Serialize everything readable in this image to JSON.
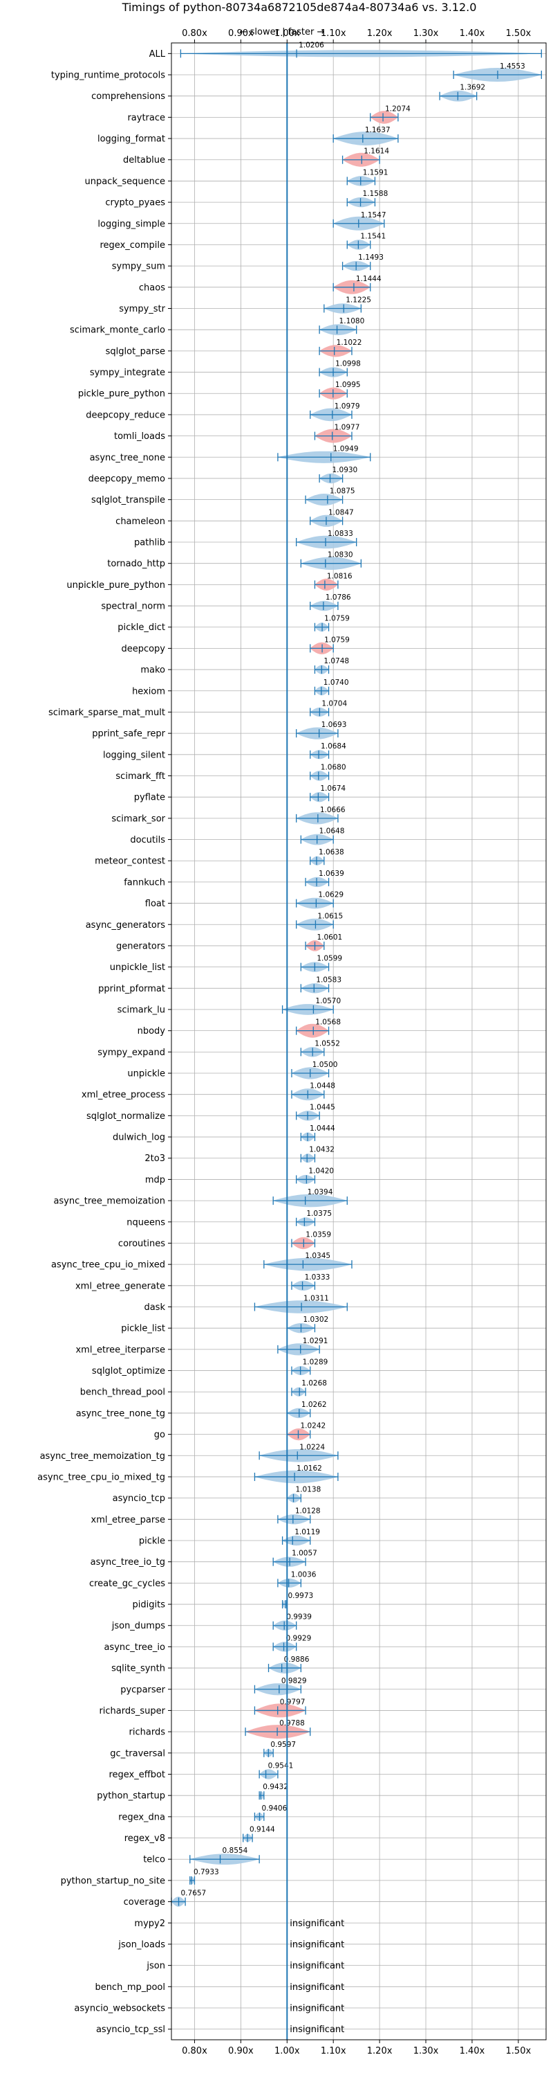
{
  "chart_data": {
    "type": "violin",
    "title": "Timings of python-80734a6872105de874a4-80734a6 vs. 3.12.0",
    "direction_label": "← slower | faster →",
    "xlim": [
      0.75,
      1.56
    ],
    "x_ticks": [
      0.8,
      0.9,
      1.0,
      1.1,
      1.2,
      1.3,
      1.4,
      1.5
    ],
    "x_tick_labels": [
      "0.80x",
      "0.90x",
      "1.00x",
      "1.10x",
      "1.20x",
      "1.30x",
      "1.40x",
      "1.50x"
    ],
    "reference_line": 1.0,
    "grid": true,
    "colors": {
      "normal": "#a9cbe6",
      "highlight": "#f4a6a6",
      "line": "#1f77b4"
    },
    "insignificant_label": "insignificant",
    "benchmarks": [
      {
        "name": "ALL",
        "value": 1.0206,
        "label": "1.0206",
        "min": 0.77,
        "max": 1.55,
        "width": 0.3,
        "highlight": false
      },
      {
        "name": "typing_runtime_protocols",
        "value": 1.4553,
        "label": "1.4553",
        "min": 1.36,
        "max": 1.55,
        "width": 1.0,
        "highlight": false
      },
      {
        "name": "comprehensions",
        "value": 1.3692,
        "label": "1.3692",
        "min": 1.33,
        "max": 1.41,
        "width": 0.7,
        "highlight": false
      },
      {
        "name": "raytrace",
        "value": 1.2074,
        "label": "1.2074",
        "min": 1.18,
        "max": 1.24,
        "width": 0.9,
        "highlight": true
      },
      {
        "name": "logging_format",
        "value": 1.1637,
        "label": "1.1637",
        "min": 1.1,
        "max": 1.24,
        "width": 1.0,
        "highlight": false
      },
      {
        "name": "deltablue",
        "value": 1.1614,
        "label": "1.1614",
        "min": 1.12,
        "max": 1.2,
        "width": 1.0,
        "highlight": true
      },
      {
        "name": "unpack_sequence",
        "value": 1.1591,
        "label": "1.1591",
        "min": 1.13,
        "max": 1.19,
        "width": 0.6,
        "highlight": false
      },
      {
        "name": "crypto_pyaes",
        "value": 1.1588,
        "label": "1.1588",
        "min": 1.13,
        "max": 1.19,
        "width": 0.6,
        "highlight": false
      },
      {
        "name": "logging_simple",
        "value": 1.1547,
        "label": "1.1547",
        "min": 1.1,
        "max": 1.21,
        "width": 1.0,
        "highlight": false
      },
      {
        "name": "regex_compile",
        "value": 1.1541,
        "label": "1.1541",
        "min": 1.13,
        "max": 1.18,
        "width": 0.6,
        "highlight": false
      },
      {
        "name": "sympy_sum",
        "value": 1.1493,
        "label": "1.1493",
        "min": 1.12,
        "max": 1.18,
        "width": 0.6,
        "highlight": false
      },
      {
        "name": "chaos",
        "value": 1.1444,
        "label": "1.1444",
        "min": 1.1,
        "max": 1.18,
        "width": 1.0,
        "highlight": true
      },
      {
        "name": "sympy_str",
        "value": 1.1225,
        "label": "1.1225",
        "min": 1.08,
        "max": 1.16,
        "width": 0.6,
        "highlight": false
      },
      {
        "name": "scimark_monte_carlo",
        "value": 1.108,
        "label": "1.1080",
        "min": 1.07,
        "max": 1.15,
        "width": 0.7,
        "highlight": false
      },
      {
        "name": "sqlglot_parse",
        "value": 1.1022,
        "label": "1.1022",
        "min": 1.07,
        "max": 1.14,
        "width": 0.8,
        "highlight": true
      },
      {
        "name": "sympy_integrate",
        "value": 1.0998,
        "label": "1.0998",
        "min": 1.07,
        "max": 1.13,
        "width": 0.6,
        "highlight": false
      },
      {
        "name": "pickle_pure_python",
        "value": 1.0995,
        "label": "1.0995",
        "min": 1.07,
        "max": 1.13,
        "width": 0.8,
        "highlight": true
      },
      {
        "name": "deepcopy_reduce",
        "value": 1.0979,
        "label": "1.0979",
        "min": 1.05,
        "max": 1.14,
        "width": 0.9,
        "highlight": false
      },
      {
        "name": "tomli_loads",
        "value": 1.0977,
        "label": "1.0977",
        "min": 1.06,
        "max": 1.14,
        "width": 1.0,
        "highlight": true
      },
      {
        "name": "async_tree_none",
        "value": 1.0949,
        "label": "1.0949",
        "min": 0.98,
        "max": 1.18,
        "width": 0.8,
        "highlight": false
      },
      {
        "name": "deepcopy_memo",
        "value": 1.093,
        "label": "1.0930",
        "min": 1.07,
        "max": 1.12,
        "width": 0.6,
        "highlight": false
      },
      {
        "name": "sqlglot_transpile",
        "value": 1.0875,
        "label": "1.0875",
        "min": 1.04,
        "max": 1.12,
        "width": 0.8,
        "highlight": false
      },
      {
        "name": "chameleon",
        "value": 1.0847,
        "label": "1.0847",
        "min": 1.05,
        "max": 1.12,
        "width": 0.8,
        "highlight": false
      },
      {
        "name": "pathlib",
        "value": 1.0833,
        "label": "1.0833",
        "min": 1.02,
        "max": 1.15,
        "width": 0.9,
        "highlight": false
      },
      {
        "name": "tornado_http",
        "value": 1.083,
        "label": "1.0830",
        "min": 1.03,
        "max": 1.16,
        "width": 0.9,
        "highlight": false
      },
      {
        "name": "unpickle_pure_python",
        "value": 1.0816,
        "label": "1.0816",
        "min": 1.06,
        "max": 1.11,
        "width": 0.8,
        "highlight": true
      },
      {
        "name": "spectral_norm",
        "value": 1.0786,
        "label": "1.0786",
        "min": 1.05,
        "max": 1.11,
        "width": 0.6,
        "highlight": false
      },
      {
        "name": "pickle_dict",
        "value": 1.0759,
        "label": "1.0759",
        "min": 1.06,
        "max": 1.09,
        "width": 0.5,
        "highlight": false
      },
      {
        "name": "deepcopy",
        "value": 1.0759,
        "label": "1.0759",
        "min": 1.05,
        "max": 1.1,
        "width": 0.8,
        "highlight": true
      },
      {
        "name": "mako",
        "value": 1.0748,
        "label": "1.0748",
        "min": 1.06,
        "max": 1.09,
        "width": 0.5,
        "highlight": false
      },
      {
        "name": "hexiom",
        "value": 1.074,
        "label": "1.0740",
        "min": 1.06,
        "max": 1.09,
        "width": 0.5,
        "highlight": false
      },
      {
        "name": "scimark_sparse_mat_mult",
        "value": 1.0704,
        "label": "1.0704",
        "min": 1.05,
        "max": 1.09,
        "width": 0.5,
        "highlight": false
      },
      {
        "name": "pprint_safe_repr",
        "value": 1.0693,
        "label": "1.0693",
        "min": 1.02,
        "max": 1.11,
        "width": 0.8,
        "highlight": false
      },
      {
        "name": "logging_silent",
        "value": 1.0684,
        "label": "1.0684",
        "min": 1.05,
        "max": 1.09,
        "width": 0.5,
        "highlight": false
      },
      {
        "name": "scimark_fft",
        "value": 1.068,
        "label": "1.0680",
        "min": 1.05,
        "max": 1.09,
        "width": 0.6,
        "highlight": false
      },
      {
        "name": "pyflate",
        "value": 1.0674,
        "label": "1.0674",
        "min": 1.05,
        "max": 1.09,
        "width": 0.6,
        "highlight": false
      },
      {
        "name": "scimark_sor",
        "value": 1.0666,
        "label": "1.0666",
        "min": 1.02,
        "max": 1.11,
        "width": 0.8,
        "highlight": false
      },
      {
        "name": "docutils",
        "value": 1.0648,
        "label": "1.0648",
        "min": 1.03,
        "max": 1.1,
        "width": 0.7,
        "highlight": false
      },
      {
        "name": "meteor_contest",
        "value": 1.0638,
        "label": "1.0638",
        "min": 1.05,
        "max": 1.08,
        "width": 0.5,
        "highlight": false
      },
      {
        "name": "fannkuch",
        "value": 1.0639,
        "label": "1.0639",
        "min": 1.04,
        "max": 1.09,
        "width": 0.6,
        "highlight": false
      },
      {
        "name": "float",
        "value": 1.0629,
        "label": "1.0629",
        "min": 1.02,
        "max": 1.1,
        "width": 0.7,
        "highlight": false
      },
      {
        "name": "async_generators",
        "value": 1.0615,
        "label": "1.0615",
        "min": 1.02,
        "max": 1.1,
        "width": 0.8,
        "highlight": false
      },
      {
        "name": "generators",
        "value": 1.0601,
        "label": "1.0601",
        "min": 1.04,
        "max": 1.08,
        "width": 0.7,
        "highlight": true
      },
      {
        "name": "unpickle_list",
        "value": 1.0599,
        "label": "1.0599",
        "min": 1.03,
        "max": 1.09,
        "width": 0.6,
        "highlight": false
      },
      {
        "name": "pprint_pformat",
        "value": 1.0583,
        "label": "1.0583",
        "min": 1.03,
        "max": 1.09,
        "width": 0.6,
        "highlight": false
      },
      {
        "name": "scimark_lu",
        "value": 1.057,
        "label": "1.0570",
        "min": 0.99,
        "max": 1.1,
        "width": 0.7,
        "highlight": false
      },
      {
        "name": "nbody",
        "value": 1.0568,
        "label": "1.0568",
        "min": 1.02,
        "max": 1.09,
        "width": 1.0,
        "highlight": true
      },
      {
        "name": "sympy_expand",
        "value": 1.0552,
        "label": "1.0552",
        "min": 1.03,
        "max": 1.08,
        "width": 0.6,
        "highlight": false
      },
      {
        "name": "unpickle",
        "value": 1.05,
        "label": "1.0500",
        "min": 1.01,
        "max": 1.09,
        "width": 0.8,
        "highlight": false
      },
      {
        "name": "xml_etree_process",
        "value": 1.0448,
        "label": "1.0448",
        "min": 1.01,
        "max": 1.08,
        "width": 0.8,
        "highlight": false
      },
      {
        "name": "sqlglot_normalize",
        "value": 1.0445,
        "label": "1.0445",
        "min": 1.02,
        "max": 1.07,
        "width": 0.6,
        "highlight": false
      },
      {
        "name": "dulwich_log",
        "value": 1.0444,
        "label": "1.0444",
        "min": 1.03,
        "max": 1.06,
        "width": 0.5,
        "highlight": false
      },
      {
        "name": "2to3",
        "value": 1.0432,
        "label": "1.0432",
        "min": 1.03,
        "max": 1.06,
        "width": 0.5,
        "highlight": false
      },
      {
        "name": "mdp",
        "value": 1.042,
        "label": "1.0420",
        "min": 1.02,
        "max": 1.06,
        "width": 0.5,
        "highlight": false
      },
      {
        "name": "async_tree_memoization",
        "value": 1.0394,
        "label": "1.0394",
        "min": 0.97,
        "max": 1.13,
        "width": 0.9,
        "highlight": false
      },
      {
        "name": "nqueens",
        "value": 1.0375,
        "label": "1.0375",
        "min": 1.02,
        "max": 1.06,
        "width": 0.5,
        "highlight": false
      },
      {
        "name": "coroutines",
        "value": 1.0359,
        "label": "1.0359",
        "min": 1.01,
        "max": 1.06,
        "width": 0.8,
        "highlight": true
      },
      {
        "name": "async_tree_cpu_io_mixed",
        "value": 1.0345,
        "label": "1.0345",
        "min": 0.95,
        "max": 1.14,
        "width": 0.9,
        "highlight": false
      },
      {
        "name": "xml_etree_generate",
        "value": 1.0333,
        "label": "1.0333",
        "min": 1.01,
        "max": 1.06,
        "width": 0.6,
        "highlight": false
      },
      {
        "name": "dask",
        "value": 1.0311,
        "label": "1.0311",
        "min": 0.93,
        "max": 1.13,
        "width": 0.9,
        "highlight": false
      },
      {
        "name": "pickle_list",
        "value": 1.0302,
        "label": "1.0302",
        "min": 1.0,
        "max": 1.06,
        "width": 0.6,
        "highlight": false
      },
      {
        "name": "xml_etree_iterparse",
        "value": 1.0291,
        "label": "1.0291",
        "min": 0.98,
        "max": 1.07,
        "width": 0.8,
        "highlight": false
      },
      {
        "name": "sqlglot_optimize",
        "value": 1.0289,
        "label": "1.0289",
        "min": 1.01,
        "max": 1.05,
        "width": 0.5,
        "highlight": false
      },
      {
        "name": "bench_thread_pool",
        "value": 1.0268,
        "label": "1.0268",
        "min": 1.01,
        "max": 1.04,
        "width": 0.5,
        "highlight": false
      },
      {
        "name": "async_tree_none_tg",
        "value": 1.0262,
        "label": "1.0262",
        "min": 1.0,
        "max": 1.05,
        "width": 0.6,
        "highlight": false
      },
      {
        "name": "go",
        "value": 1.0242,
        "label": "1.0242",
        "min": 1.0,
        "max": 1.05,
        "width": 0.8,
        "highlight": true
      },
      {
        "name": "async_tree_memoization_tg",
        "value": 1.0224,
        "label": "1.0224",
        "min": 0.94,
        "max": 1.11,
        "width": 0.9,
        "highlight": false
      },
      {
        "name": "async_tree_cpu_io_mixed_tg",
        "value": 1.0162,
        "label": "1.0162",
        "min": 0.93,
        "max": 1.11,
        "width": 0.9,
        "highlight": false
      },
      {
        "name": "asyncio_tcp",
        "value": 1.0138,
        "label": "1.0138",
        "min": 1.0,
        "max": 1.03,
        "width": 0.5,
        "highlight": false
      },
      {
        "name": "xml_etree_parse",
        "value": 1.0128,
        "label": "1.0128",
        "min": 0.98,
        "max": 1.05,
        "width": 0.6,
        "highlight": false
      },
      {
        "name": "pickle",
        "value": 1.0119,
        "label": "1.0119",
        "min": 0.99,
        "max": 1.05,
        "width": 0.6,
        "highlight": false
      },
      {
        "name": "async_tree_io_tg",
        "value": 1.0057,
        "label": "1.0057",
        "min": 0.97,
        "max": 1.04,
        "width": 0.6,
        "highlight": false
      },
      {
        "name": "create_gc_cycles",
        "value": 1.0036,
        "label": "1.0036",
        "min": 0.98,
        "max": 1.03,
        "width": 0.5,
        "highlight": false
      },
      {
        "name": "pidigits",
        "value": 0.9973,
        "label": "0.9973",
        "min": 0.99,
        "max": 1.0,
        "width": 0.4,
        "highlight": false
      },
      {
        "name": "json_dumps",
        "value": 0.9939,
        "label": "0.9939",
        "min": 0.97,
        "max": 1.02,
        "width": 0.6,
        "highlight": false
      },
      {
        "name": "async_tree_io",
        "value": 0.9929,
        "label": "0.9929",
        "min": 0.97,
        "max": 1.02,
        "width": 0.6,
        "highlight": false
      },
      {
        "name": "sqlite_synth",
        "value": 0.9886,
        "label": "0.9886",
        "min": 0.96,
        "max": 1.03,
        "width": 0.7,
        "highlight": false
      },
      {
        "name": "pycparser",
        "value": 0.9829,
        "label": "0.9829",
        "min": 0.93,
        "max": 1.03,
        "width": 0.8,
        "highlight": false
      },
      {
        "name": "richards_super",
        "value": 0.9797,
        "label": "0.9797",
        "min": 0.93,
        "max": 1.04,
        "width": 1.0,
        "highlight": true
      },
      {
        "name": "richards",
        "value": 0.9788,
        "label": "0.9788",
        "min": 0.91,
        "max": 1.05,
        "width": 1.0,
        "highlight": true
      },
      {
        "name": "gc_traversal",
        "value": 0.9597,
        "label": "0.9597",
        "min": 0.95,
        "max": 0.97,
        "width": 0.4,
        "highlight": false
      },
      {
        "name": "regex_effbot",
        "value": 0.9541,
        "label": "0.9541",
        "min": 0.94,
        "max": 0.98,
        "width": 0.6,
        "highlight": false
      },
      {
        "name": "python_startup",
        "value": 0.9432,
        "label": "0.9432",
        "min": 0.94,
        "max": 0.95,
        "width": 0.4,
        "highlight": false
      },
      {
        "name": "regex_dna",
        "value": 0.9406,
        "label": "0.9406",
        "min": 0.93,
        "max": 0.95,
        "width": 0.4,
        "highlight": false
      },
      {
        "name": "regex_v8",
        "value": 0.9144,
        "label": "0.9144",
        "min": 0.905,
        "max": 0.925,
        "width": 0.4,
        "highlight": false
      },
      {
        "name": "telco",
        "value": 0.8554,
        "label": "0.8554",
        "min": 0.79,
        "max": 0.94,
        "width": 0.7,
        "highlight": false
      },
      {
        "name": "python_startup_no_site",
        "value": 0.7933,
        "label": "0.7933",
        "min": 0.79,
        "max": 0.8,
        "width": 0.3,
        "highlight": false
      },
      {
        "name": "coverage",
        "value": 0.7657,
        "label": "0.7657",
        "min": 0.75,
        "max": 0.78,
        "width": 0.6,
        "highlight": false
      },
      {
        "name": "mypy2",
        "value": null,
        "label": "",
        "insignificant": true
      },
      {
        "name": "json_loads",
        "value": null,
        "label": "",
        "insignificant": true
      },
      {
        "name": "json",
        "value": null,
        "label": "",
        "insignificant": true
      },
      {
        "name": "bench_mp_pool",
        "value": null,
        "label": "",
        "insignificant": true
      },
      {
        "name": "asyncio_websockets",
        "value": null,
        "label": "",
        "insignificant": true
      },
      {
        "name": "asyncio_tcp_ssl",
        "value": null,
        "label": "",
        "insignificant": true
      }
    ]
  }
}
